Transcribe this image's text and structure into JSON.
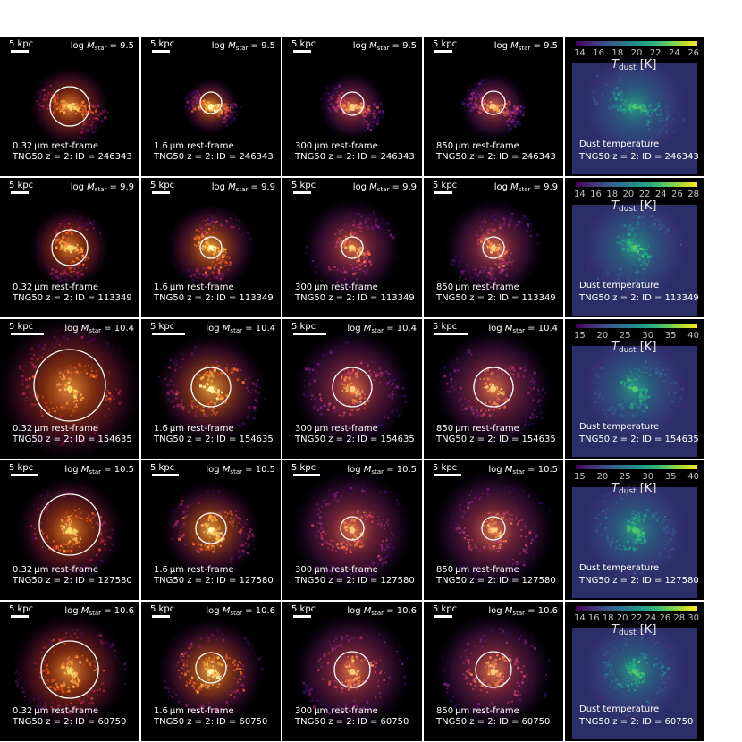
{
  "bands": [
    {
      "label": "0.32 μm rest-frame",
      "palette": [
        "#f7dc6e",
        "#f89b3e",
        "#e1511c",
        "#9c1f48",
        "#3d0c4e"
      ]
    },
    {
      "label": "1.6 μm rest-frame",
      "palette": [
        "#fff6b0",
        "#fbb341",
        "#e8612a",
        "#8e1f5c",
        "#360d52"
      ]
    },
    {
      "label": "300 μm rest-frame",
      "palette": [
        "#fbcf7a",
        "#f37f46",
        "#c43c5d",
        "#7b1e73",
        "#2e0b57"
      ]
    },
    {
      "label": "850 μm rest-frame",
      "palette": [
        "#fcd07d",
        "#f2804b",
        "#c23f62",
        "#7a2077",
        "#2d0b59"
      ]
    },
    {
      "label": "Dust temperature",
      "palette": [
        "#55c66a",
        "#23a884",
        "#2a788e",
        "#3b528b",
        "#482878"
      ]
    }
  ],
  "mass_label": {
    "prefix": "log",
    "symbol": "M",
    "subscript": "star",
    "eq": " = "
  },
  "tdust_label": {
    "symbol": "T",
    "subscript": "dust",
    "unit": " [K]"
  },
  "galaxies": [
    {
      "id_text": "TNG50 z = 2: ID = 246343",
      "scale": "5 kpc",
      "logM": "9.5",
      "tick_labels": [
        "14",
        "16",
        "18",
        "20",
        "22",
        "24",
        "26"
      ]
    },
    {
      "id_text": "TNG50 z = 2: ID = 113349",
      "scale": "5 kpc",
      "logM": "9.9",
      "tick_labels": [
        "14",
        "16",
        "18",
        "20",
        "22",
        "24",
        "26",
        "28"
      ]
    },
    {
      "id_text": "TNG50 z = 2: ID = 154635",
      "scale": "5 kpc",
      "logM": "10.4",
      "tick_labels": [
        "15",
        "20",
        "25",
        "30",
        "35",
        "40"
      ]
    },
    {
      "id_text": "TNG50 z = 2: ID = 127580",
      "scale": "5 kpc",
      "logM": "10.5",
      "tick_labels": [
        "15",
        "20",
        "25",
        "30",
        "35",
        "40"
      ]
    },
    {
      "id_text": "TNG50 z = 2: ID = 60750",
      "scale": "5 kpc",
      "logM": "10.6",
      "tick_labels": [
        "14",
        "16",
        "18",
        "20",
        "22",
        "24",
        "26",
        "28",
        "30"
      ]
    }
  ]
}
